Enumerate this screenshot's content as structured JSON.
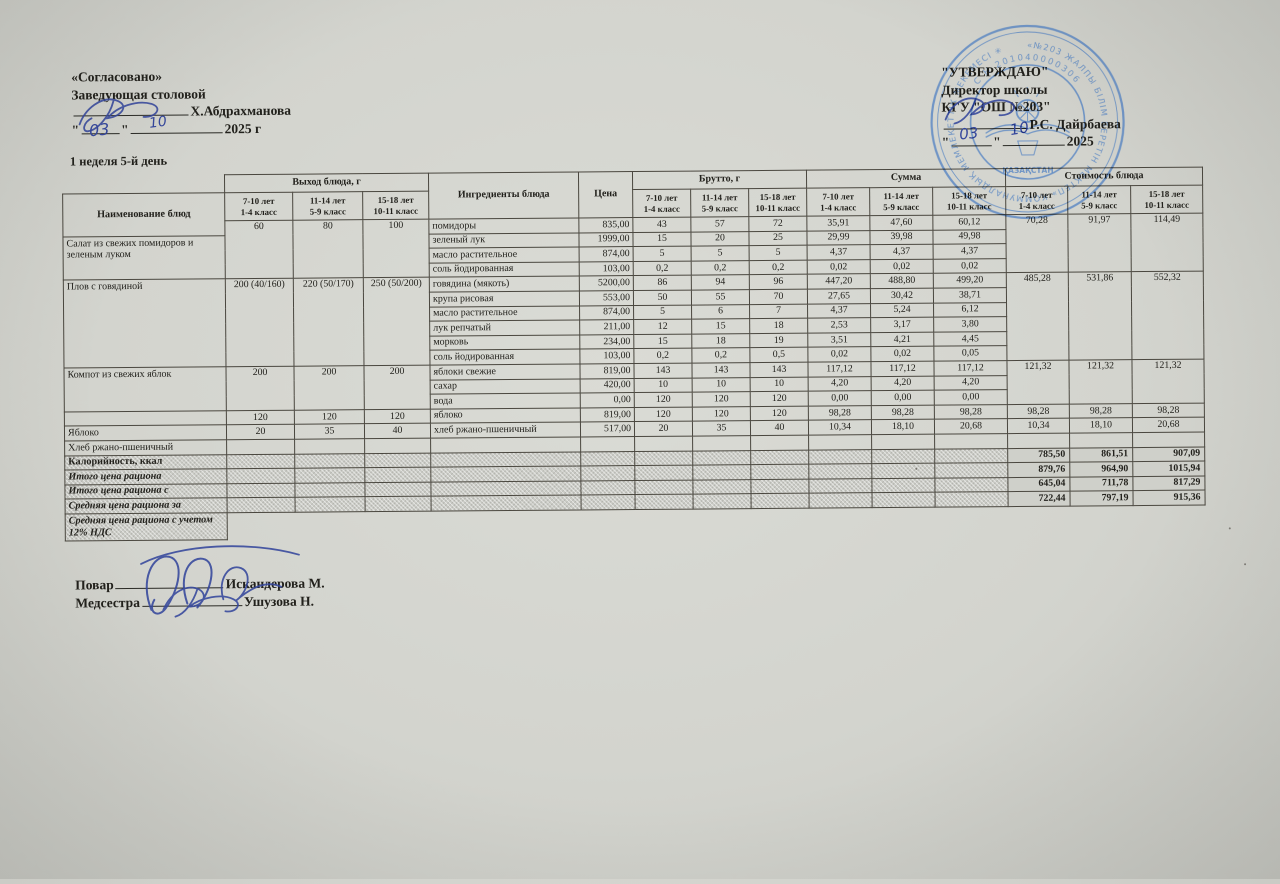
{
  "document": {
    "approved": {
      "title": "«Согласовано»",
      "role": "Заведующая столовой",
      "signer": "Х.Абдрахманова",
      "dq": "\"",
      "year": "2025 г"
    },
    "confirmed": {
      "title": "\"УТВЕРЖДАЮ\"",
      "role": "Директор школы",
      "org": "КГУ \"ОШ №203\"",
      "signer": "Р.С. Дайрбаева",
      "dq": "\"",
      "year": "2025"
    },
    "handwriting": {
      "left_day": "03",
      "left_month": "10",
      "right_day": "03",
      "right_month": "10"
    },
    "period_label": "1 неделя 5-й день",
    "footer": {
      "cook_label": "Повар",
      "cook_name": "Искандерова М.",
      "nurse_label": "Медсестра",
      "nurse_name": "Ушузова Н."
    },
    "stamp": {
      "ring_text": "«№203 ЖАЛПЫ БІЛІМ БЕРЕТІН МЕКТЕП» КОММУНАЛДЫҚ МЕМЛЕКЕТТІК МЕКЕМЕСІ ✳",
      "number": "С Н 201040000306",
      "center_text": "ҚАЗАҚСТАН",
      "color": "#4a7dc2"
    }
  },
  "table": {
    "group_headers": {
      "name": "Наименование блюд",
      "yield": "Выход блюда, г",
      "ingredients": "Ингредиенты блюда",
      "price": "Цена",
      "brutto": "Брутто, г",
      "sum": "Сумма",
      "cost": "Стоимость блюда"
    },
    "age_headers": [
      {
        "l1": "7-10 лет",
        "l2": "1-4 класс"
      },
      {
        "l1": "11-14 лет",
        "l2": "5-9 класс"
      },
      {
        "l1": "15-18 лет",
        "l2": "10-11 класс"
      }
    ],
    "rows": [
      [
        {
          "t": "60",
          "rs": 4
        },
        {
          "t": "80",
          "rs": 4
        },
        {
          "t": "100",
          "rs": 4
        },
        {
          "t": "помидоры",
          "c": "l"
        },
        {
          "t": "835,00",
          "c": "r"
        },
        {
          "t": "43"
        },
        {
          "t": "57"
        },
        {
          "t": "72"
        },
        {
          "t": "35,91"
        },
        {
          "t": "47,60"
        },
        {
          "t": "60,12"
        },
        {
          "t": "70,28",
          "rs": 4
        },
        {
          "t": "91,97",
          "rs": 4
        },
        {
          "t": "114,49",
          "rs": 4
        }
      ],
      [
        {
          "t": "Салат из свежих помидоров и зеленым луком",
          "rs": 3,
          "c": "dish"
        },
        {
          "t": "зеленый лук",
          "c": "l"
        },
        {
          "t": "1999,00",
          "c": "r"
        },
        {
          "t": "15"
        },
        {
          "t": "20"
        },
        {
          "t": "25"
        },
        {
          "t": "29,99"
        },
        {
          "t": "39,98"
        },
        {
          "t": "49,98"
        }
      ],
      [
        {
          "t": "масло растительное",
          "c": "l"
        },
        {
          "t": "874,00",
          "c": "r"
        },
        {
          "t": "5"
        },
        {
          "t": "5"
        },
        {
          "t": "5"
        },
        {
          "t": "4,37"
        },
        {
          "t": "4,37"
        },
        {
          "t": "4,37"
        }
      ],
      [
        {
          "t": "соль йодированная",
          "c": "l"
        },
        {
          "t": "103,00",
          "c": "r"
        },
        {
          "t": "0,2"
        },
        {
          "t": "0,2"
        },
        {
          "t": "0,2"
        },
        {
          "t": "0,02"
        },
        {
          "t": "0,02"
        },
        {
          "t": "0,02"
        }
      ],
      [
        {
          "t": "Плов с говядиной",
          "rs": 6,
          "c": "dish"
        },
        {
          "t": "200 (40/160)",
          "rs": 6
        },
        {
          "t": "220 (50/170)",
          "rs": 6
        },
        {
          "t": "250 (50/200)",
          "rs": 6
        },
        {
          "t": "говядина (мякоть)",
          "c": "l"
        },
        {
          "t": "5200,00",
          "c": "r"
        },
        {
          "t": "86"
        },
        {
          "t": "94"
        },
        {
          "t": "96"
        },
        {
          "t": "447,20"
        },
        {
          "t": "488,80"
        },
        {
          "t": "499,20"
        },
        {
          "t": "485,28",
          "rs": 6
        },
        {
          "t": "531,86",
          "rs": 6
        },
        {
          "t": "552,32",
          "rs": 6
        }
      ],
      [
        {
          "t": "крупа рисовая",
          "c": "l"
        },
        {
          "t": "553,00",
          "c": "r"
        },
        {
          "t": "50"
        },
        {
          "t": "55"
        },
        {
          "t": "70"
        },
        {
          "t": "27,65"
        },
        {
          "t": "30,42"
        },
        {
          "t": "38,71"
        }
      ],
      [
        {
          "t": "масло растительное",
          "c": "l"
        },
        {
          "t": "874,00",
          "c": "r"
        },
        {
          "t": "5"
        },
        {
          "t": "6"
        },
        {
          "t": "7"
        },
        {
          "t": "4,37"
        },
        {
          "t": "5,24"
        },
        {
          "t": "6,12"
        }
      ],
      [
        {
          "t": "лук репчатый",
          "c": "l"
        },
        {
          "t": "211,00",
          "c": "r"
        },
        {
          "t": "12"
        },
        {
          "t": "15"
        },
        {
          "t": "18"
        },
        {
          "t": "2,53"
        },
        {
          "t": "3,17"
        },
        {
          "t": "3,80"
        }
      ],
      [
        {
          "t": "морковь",
          "c": "l"
        },
        {
          "t": "234,00",
          "c": "r"
        },
        {
          "t": "15"
        },
        {
          "t": "18"
        },
        {
          "t": "19"
        },
        {
          "t": "3,51"
        },
        {
          "t": "4,21"
        },
        {
          "t": "4,45"
        }
      ],
      [
        {
          "t": "соль йодированная",
          "c": "l"
        },
        {
          "t": "103,00",
          "c": "r"
        },
        {
          "t": "0,2"
        },
        {
          "t": "0,2"
        },
        {
          "t": "0,5"
        },
        {
          "t": "0,02"
        },
        {
          "t": "0,02"
        },
        {
          "t": "0,05"
        }
      ],
      [
        {
          "t": "Компот из свежих яблок",
          "rs": 3,
          "c": "dish"
        },
        {
          "t": "200",
          "rs": 3
        },
        {
          "t": "200",
          "rs": 3
        },
        {
          "t": "200",
          "rs": 3
        },
        {
          "t": "яблоки свежие",
          "c": "l"
        },
        {
          "t": "819,00",
          "c": "r"
        },
        {
          "t": "143"
        },
        {
          "t": "143"
        },
        {
          "t": "143"
        },
        {
          "t": "117,12"
        },
        {
          "t": "117,12"
        },
        {
          "t": "117,12"
        },
        {
          "t": "121,32",
          "rs": 3
        },
        {
          "t": "121,32",
          "rs": 3
        },
        {
          "t": "121,32",
          "rs": 3
        }
      ],
      [
        {
          "t": "сахар",
          "c": "l"
        },
        {
          "t": "420,00",
          "c": "r"
        },
        {
          "t": "10"
        },
        {
          "t": "10"
        },
        {
          "t": "10"
        },
        {
          "t": "4,20"
        },
        {
          "t": "4,20"
        },
        {
          "t": "4,20"
        }
      ],
      [
        {
          "t": "вода",
          "c": "l"
        },
        {
          "t": "0,00",
          "c": "r"
        },
        {
          "t": "120"
        },
        {
          "t": "120"
        },
        {
          "t": "120"
        },
        {
          "t": "0,00"
        },
        {
          "t": "0,00"
        },
        {
          "t": "0,00"
        }
      ],
      [
        {
          "t": "",
          "c": "dish"
        },
        {
          "t": "120"
        },
        {
          "t": "120"
        },
        {
          "t": "120"
        },
        {
          "t": "яблоко",
          "c": "l"
        },
        {
          "t": "819,00",
          "c": "r"
        },
        {
          "t": "120"
        },
        {
          "t": "120"
        },
        {
          "t": "120"
        },
        {
          "t": "98,28"
        },
        {
          "t": "98,28"
        },
        {
          "t": "98,28"
        },
        {
          "t": "98,28"
        },
        {
          "t": "98,28"
        },
        {
          "t": "98,28"
        }
      ],
      [
        {
          "t": "Яблоко",
          "c": "dish"
        },
        {
          "t": "20"
        },
        {
          "t": "35"
        },
        {
          "t": "40"
        },
        {
          "t": "хлеб ржано-пшеничный",
          "c": "l"
        },
        {
          "t": "517,00",
          "c": "r"
        },
        {
          "t": "20"
        },
        {
          "t": "35"
        },
        {
          "t": "40"
        },
        {
          "t": "10,34"
        },
        {
          "t": "18,10"
        },
        {
          "t": "20,68"
        },
        {
          "t": "10,34"
        },
        {
          "t": "18,10"
        },
        {
          "t": "20,68"
        }
      ],
      [
        {
          "t": "Хлеб ржано-пшеничный",
          "c": "dish"
        },
        {
          "t": ""
        },
        {
          "t": ""
        },
        {
          "t": ""
        },
        {
          "t": ""
        },
        {
          "t": ""
        },
        {
          "t": ""
        },
        {
          "t": ""
        },
        {
          "t": ""
        },
        {
          "t": ""
        },
        {
          "t": ""
        },
        {
          "t": ""
        },
        {
          "t": ""
        },
        {
          "t": ""
        },
        {
          "t": ""
        }
      ],
      [
        {
          "t": "Калорийность, ккал",
          "c": "sumlab"
        },
        {
          "t": "",
          "c": "shade"
        },
        {
          "t": "",
          "c": "shade"
        },
        {
          "t": "",
          "c": "shade"
        },
        {
          "t": "",
          "c": "shade"
        },
        {
          "t": "",
          "c": "shade"
        },
        {
          "t": "",
          "c": "shade"
        },
        {
          "t": "",
          "c": "shade"
        },
        {
          "t": "",
          "c": "shade"
        },
        {
          "t": "",
          "c": "shade"
        },
        {
          "t": "",
          "c": "shade"
        },
        {
          "t": "",
          "c": "shade"
        },
        {
          "t": "785,50",
          "c": "sumval"
        },
        {
          "t": "861,51",
          "c": "sumval"
        },
        {
          "t": "907,09",
          "c": "sumval"
        }
      ],
      [
        {
          "t": "Итого цена рациона",
          "c": "sumlab ital"
        },
        {
          "t": "",
          "c": "shade"
        },
        {
          "t": "",
          "c": "shade"
        },
        {
          "t": "",
          "c": "shade"
        },
        {
          "t": "",
          "c": "shade"
        },
        {
          "t": "",
          "c": "shade"
        },
        {
          "t": "",
          "c": "shade"
        },
        {
          "t": "",
          "c": "shade"
        },
        {
          "t": "",
          "c": "shade"
        },
        {
          "t": "",
          "c": "shade"
        },
        {
          "t": "",
          "c": "shade"
        },
        {
          "t": "",
          "c": "shade"
        },
        {
          "t": "879,76",
          "c": "sumval"
        },
        {
          "t": "964,90",
          "c": "sumval"
        },
        {
          "t": "1015,94",
          "c": "sumval"
        }
      ],
      [
        {
          "t": "Итого цена рациона с",
          "c": "sumlab ital"
        },
        {
          "t": "",
          "c": "shade"
        },
        {
          "t": "",
          "c": "shade"
        },
        {
          "t": "",
          "c": "shade"
        },
        {
          "t": "",
          "c": "shade"
        },
        {
          "t": "",
          "c": "shade"
        },
        {
          "t": "",
          "c": "shade"
        },
        {
          "t": "",
          "c": "shade"
        },
        {
          "t": "",
          "c": "shade"
        },
        {
          "t": "",
          "c": "shade"
        },
        {
          "t": "",
          "c": "shade"
        },
        {
          "t": "",
          "c": "shade"
        },
        {
          "t": "645,04",
          "c": "sumval"
        },
        {
          "t": "711,78",
          "c": "sumval"
        },
        {
          "t": "817,29",
          "c": "sumval"
        }
      ],
      [
        {
          "t": "Средняя цена рациона за",
          "c": "sumlab ital"
        },
        {
          "t": "",
          "c": "shade"
        },
        {
          "t": "",
          "c": "shade"
        },
        {
          "t": "",
          "c": "shade"
        },
        {
          "t": "",
          "c": "shade"
        },
        {
          "t": "",
          "c": "shade"
        },
        {
          "t": "",
          "c": "shade"
        },
        {
          "t": "",
          "c": "shade"
        },
        {
          "t": "",
          "c": "shade"
        },
        {
          "t": "",
          "c": "shade"
        },
        {
          "t": "",
          "c": "shade"
        },
        {
          "t": "",
          "c": "shade"
        },
        {
          "t": "722,44",
          "c": "sumval"
        },
        {
          "t": "797,19",
          "c": "sumval"
        },
        {
          "t": "915,36",
          "c": "sumval"
        }
      ],
      [
        {
          "t": "Средняя цена рациона с учетом 12% НДС",
          "c": "tail"
        }
      ]
    ]
  }
}
